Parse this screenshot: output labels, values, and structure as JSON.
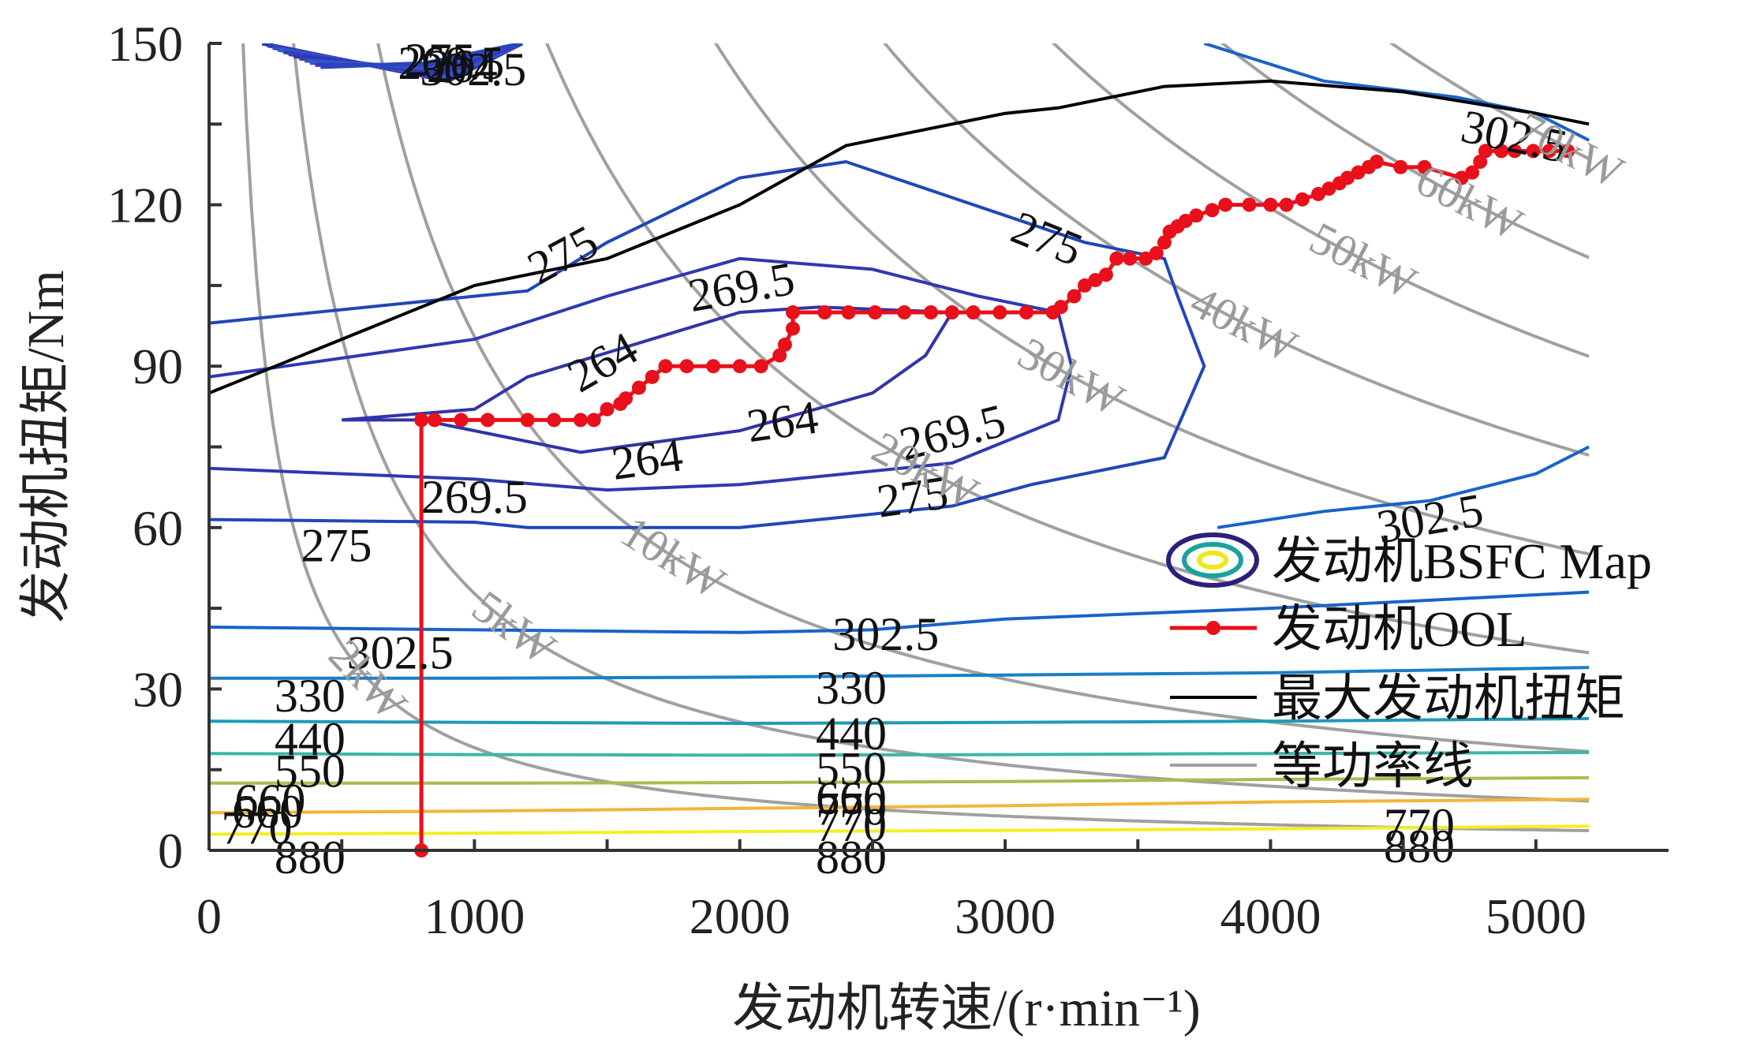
{
  "chart_data": {
    "type": "line",
    "title": "",
    "xlabel": "发动机转速/(r·min⁻¹)",
    "ylabel": "发动机扭矩/Nm",
    "xlim": [
      0,
      5500
    ],
    "ylim": [
      0,
      150
    ],
    "xticks": [
      0,
      1000,
      2000,
      3000,
      4000,
      5000
    ],
    "yticks": [
      0,
      30,
      60,
      90,
      120,
      150
    ],
    "grid": false,
    "legend": {
      "position": "lower-right",
      "entries": [
        "发动机BSFC Map",
        "发动机OOL",
        "最大发动机扭矩",
        "等功率线"
      ]
    },
    "colors": {
      "ool": "#e8101a",
      "max_torque": "#000000",
      "power_lines": "#a0a0a0",
      "legend_ellipse": [
        "#2d1f7a",
        "#1aa39a",
        "#f0e81c"
      ]
    },
    "bsfc_contours": [
      {
        "level": "880",
        "color": "#f5ee1f",
        "points": [
          [
            0,
            3
          ],
          [
            1000,
            3.2
          ],
          [
            2000,
            3.5
          ],
          [
            3000,
            3.7
          ],
          [
            4000,
            4
          ],
          [
            5200,
            4.5
          ]
        ]
      },
      {
        "level": "770",
        "color": "#f2b43a",
        "points": [
          [
            0,
            7
          ],
          [
            1000,
            7.3
          ],
          [
            2000,
            7.8
          ],
          [
            3000,
            8.3
          ],
          [
            4000,
            9
          ],
          [
            5200,
            9.5
          ]
        ]
      },
      {
        "level": "660",
        "color": "#a8bd50",
        "points": [
          [
            0,
            12.5
          ],
          [
            1000,
            12.5
          ],
          [
            2000,
            12.6
          ],
          [
            3000,
            12.8
          ],
          [
            4000,
            13.2
          ],
          [
            5200,
            13.5
          ]
        ]
      },
      {
        "level": "550",
        "color": "#3cb6a8",
        "points": [
          [
            0,
            18
          ],
          [
            1000,
            17.8
          ],
          [
            2000,
            17.7
          ],
          [
            3000,
            17.8
          ],
          [
            4000,
            18
          ],
          [
            5200,
            18.2
          ]
        ]
      },
      {
        "level": "440",
        "color": "#1f9ab7",
        "points": [
          [
            0,
            24
          ],
          [
            1000,
            23.8
          ],
          [
            2000,
            23.6
          ],
          [
            3000,
            23.8
          ],
          [
            4000,
            24
          ],
          [
            5200,
            24.5
          ]
        ]
      },
      {
        "level": "330",
        "color": "#1a7fc8",
        "points": [
          [
            0,
            32
          ],
          [
            1000,
            32
          ],
          [
            2000,
            32.2
          ],
          [
            3000,
            32.6
          ],
          [
            4000,
            33
          ],
          [
            5200,
            34
          ]
        ]
      },
      {
        "level": "302.5",
        "color": "#1a63c8",
        "points": [
          [
            0,
            41.5
          ],
          [
            1000,
            41
          ],
          [
            2000,
            40.5
          ],
          [
            2500,
            41
          ],
          [
            3000,
            43
          ],
          [
            4000,
            45
          ],
          [
            5200,
            48
          ]
        ]
      },
      {
        "level": "302.5",
        "color": "#1a63c8",
        "points": [
          [
            3800,
            60
          ],
          [
            4200,
            63
          ],
          [
            4600,
            65
          ],
          [
            5000,
            70
          ],
          [
            5200,
            75
          ]
        ]
      },
      {
        "level": "302.5",
        "color": "#1a63c8",
        "points": [
          [
            3750,
            150
          ],
          [
            4200,
            143
          ],
          [
            4700,
            140
          ],
          [
            5000,
            137
          ],
          [
            5200,
            132
          ]
        ]
      },
      {
        "level": "275",
        "color": "#2047b8",
        "points": [
          [
            0,
            61.5
          ],
          [
            1000,
            61
          ],
          [
            1200,
            60
          ],
          [
            2000,
            60
          ],
          [
            2800,
            64
          ],
          [
            3100,
            68
          ],
          [
            3600,
            73
          ],
          [
            3750,
            90
          ],
          [
            3650,
            103
          ],
          [
            3600,
            110
          ],
          [
            3300,
            113
          ],
          [
            3000,
            118
          ],
          [
            2400,
            128
          ],
          [
            2000,
            125
          ],
          [
            1500,
            113
          ],
          [
            1200,
            104
          ],
          [
            0,
            98
          ]
        ]
      },
      {
        "level": "269.5",
        "color": "#2d3ab0",
        "points": [
          [
            0,
            71
          ],
          [
            1000,
            69
          ],
          [
            1500,
            67
          ],
          [
            2000,
            68
          ],
          [
            2800,
            72
          ],
          [
            3200,
            80
          ],
          [
            3250,
            90
          ],
          [
            3200,
            100
          ],
          [
            2900,
            103
          ],
          [
            2500,
            108
          ],
          [
            2000,
            110
          ],
          [
            1500,
            103
          ],
          [
            1000,
            95
          ],
          [
            0,
            88
          ]
        ]
      },
      {
        "level": "264",
        "color": "#3234a6",
        "points": [
          [
            500,
            80
          ],
          [
            800,
            80
          ],
          [
            1400,
            74
          ],
          [
            2000,
            78
          ],
          [
            2500,
            85
          ],
          [
            2700,
            92
          ],
          [
            2800,
            100
          ],
          [
            2300,
            101
          ],
          [
            2000,
            100
          ],
          [
            1600,
            94
          ],
          [
            1200,
            88
          ],
          [
            1000,
            82
          ],
          [
            500,
            80
          ]
        ]
      }
    ],
    "contour_labels": [
      {
        "text": "275",
        "x": 1330,
        "y": 111,
        "rotate": -28
      },
      {
        "text": "269.5",
        "x": 2005,
        "y": 105,
        "rotate": -10
      },
      {
        "text": "264",
        "x": 1480,
        "y": 91,
        "rotate": -30
      },
      {
        "text": "275",
        "x": 3160,
        "y": 114,
        "rotate": 22
      },
      {
        "text": "264",
        "x": 1650,
        "y": 73,
        "rotate": -8
      },
      {
        "text": "264",
        "x": 2160,
        "y": 80,
        "rotate": -8
      },
      {
        "text": "269.5",
        "x": 1000,
        "y": 66,
        "rotate": 0
      },
      {
        "text": "269.5",
        "x": 2800,
        "y": 78,
        "rotate": -14
      },
      {
        "text": "275",
        "x": 480,
        "y": 57,
        "rotate": 0
      },
      {
        "text": "275",
        "x": 2650,
        "y": 66,
        "rotate": -8
      },
      {
        "text": "302.5",
        "x": 720,
        "y": 37,
        "rotate": 0
      },
      {
        "text": "302.5",
        "x": 2550,
        "y": 40.5,
        "rotate": 0
      },
      {
        "text": "302.5",
        "x": 4600,
        "y": 62,
        "rotate": -10
      },
      {
        "text": "302.5",
        "x": 4920,
        "y": 133,
        "rotate": 12
      },
      {
        "text": "330",
        "x": 380,
        "y": 29,
        "rotate": 0
      },
      {
        "text": "330",
        "x": 2420,
        "y": 30.5,
        "rotate": 0
      },
      {
        "text": "440",
        "x": 380,
        "y": 21,
        "rotate": 0
      },
      {
        "text": "440",
        "x": 2420,
        "y": 22,
        "rotate": 0
      },
      {
        "text": "550",
        "x": 380,
        "y": 15,
        "rotate": 0
      },
      {
        "text": "550",
        "x": 2420,
        "y": 15.5,
        "rotate": 0
      },
      {
        "text": "660",
        "x": 230,
        "y": 9.5,
        "rotate": 0
      },
      {
        "text": "660",
        "x": 2420,
        "y": 10,
        "rotate": 0
      },
      {
        "text": "770",
        "x": 180,
        "y": 4.5,
        "rotate": 0
      },
      {
        "text": "770",
        "x": 2420,
        "y": 5,
        "rotate": 0
      },
      {
        "text": "880",
        "x": 380,
        "y": -1,
        "rotate": 0
      },
      {
        "text": "880",
        "x": 2420,
        "y": -1,
        "rotate": 0
      },
      {
        "text": "880",
        "x": 4560,
        "y": 1,
        "rotate": 0
      },
      {
        "text": "770",
        "x": 4560,
        "y": 5,
        "rotate": 0
      },
      {
        "text": "660",
        "x": 220,
        "y": 7.5,
        "rotate": 0
      },
      {
        "text": "770",
        "x": 2420,
        "y": 8,
        "rotate": 0
      }
    ],
    "top_left_labels": {
      "texts": [
        "275",
        "269.5",
        "264",
        "302.5"
      ],
      "x": 900,
      "y": 144
    },
    "power_lines": [
      {
        "label": "2kW",
        "kw": 2,
        "label_x": 600
      },
      {
        "label": "5kW",
        "kw": 5,
        "label_x": 1150
      },
      {
        "label": "10kW",
        "kw": 10,
        "label_x": 1750
      },
      {
        "label": "20kW",
        "kw": 20,
        "label_x": 2700
      },
      {
        "label": "30kW",
        "kw": 30,
        "label_x": 3250
      },
      {
        "label": "40kW",
        "kw": 40,
        "label_x": 3900
      },
      {
        "label": "50kW",
        "kw": 50,
        "label_x": 4350
      },
      {
        "label": "60kW",
        "kw": 60,
        "label_x": 4750
      },
      {
        "label": "70kW",
        "kw": 70,
        "label_x": 5130
      }
    ],
    "max_torque": {
      "x": [
        0,
        500,
        1000,
        1500,
        2000,
        2400,
        3000,
        3200,
        3600,
        4000,
        4500,
        5000,
        5200
      ],
      "y": [
        85,
        95,
        105,
        110,
        120,
        131,
        137,
        138,
        142,
        143,
        141,
        137,
        135
      ]
    },
    "ool": {
      "name": "发动机OOL",
      "x": [
        800,
        800,
        850,
        950,
        1050,
        1200,
        1300,
        1400,
        1450,
        1500,
        1550,
        1570,
        1620,
        1670,
        1720,
        1800,
        1900,
        2000,
        2080,
        2150,
        2170,
        2200,
        2200,
        2320,
        2410,
        2510,
        2620,
        2720,
        2800,
        2880,
        2980,
        3080,
        3180,
        3210,
        3260,
        3300,
        3340,
        3380,
        3420,
        3470,
        3530,
        3570,
        3600,
        3620,
        3650,
        3680,
        3720,
        3780,
        3830,
        3920,
        4000,
        4060,
        4120,
        4180,
        4220,
        4260,
        4290,
        4330,
        4370,
        4400,
        4490,
        4580,
        4720,
        4760,
        4790,
        4810,
        4870,
        4920,
        4990,
        5050,
        5120
      ],
      "y": [
        0,
        80,
        80,
        80,
        80,
        80,
        80,
        80,
        80,
        82,
        83,
        84,
        86,
        88,
        90,
        90,
        90,
        90,
        90,
        92,
        94,
        97,
        100,
        100,
        100,
        100,
        100,
        100,
        100,
        100,
        100,
        100,
        100,
        101,
        103,
        105,
        106,
        107,
        110,
        110,
        110,
        111,
        113,
        115,
        116,
        117,
        118,
        119,
        120,
        120,
        120,
        120,
        121,
        122,
        123,
        124,
        125,
        126,
        127,
        128,
        127,
        127,
        125,
        126,
        128,
        130,
        130,
        130,
        130,
        130,
        130
      ]
    }
  }
}
